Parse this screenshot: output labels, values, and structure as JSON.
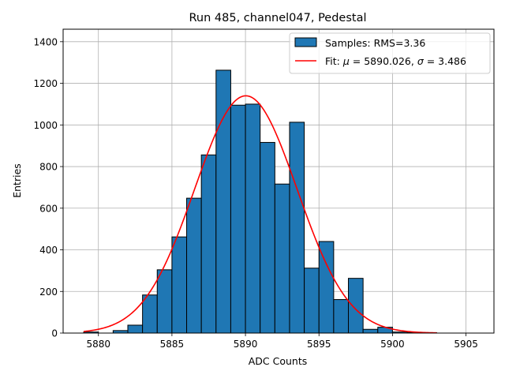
{
  "chart_data": {
    "type": "bar",
    "title": "Run 485, channel047, Pedestal",
    "xlabel": "ADC Counts",
    "ylabel": "Entries",
    "xlim": [
      5877.6,
      5906.9
    ],
    "ylim": [
      0,
      1460
    ],
    "xticks": [
      5880,
      5885,
      5890,
      5895,
      5900,
      5905
    ],
    "yticks": [
      0,
      200,
      400,
      600,
      800,
      1000,
      1200,
      1400
    ],
    "grid": true,
    "legend_position": "top-right",
    "bin_width": 1,
    "series": [
      {
        "name": "Samples: RMS=3.36",
        "kind": "histogram",
        "color": "#1f77b4",
        "edgecolor": "#000000",
        "x": [
          5879,
          5880,
          5881,
          5882,
          5883,
          5884,
          5885,
          5886,
          5887,
          5888,
          5889,
          5890,
          5891,
          5892,
          5893,
          5894,
          5895,
          5896,
          5897,
          5898,
          5899,
          5900,
          5901,
          5902
        ],
        "values": [
          5,
          0,
          12,
          38,
          183,
          304,
          462,
          648,
          856,
          1263,
          1095,
          1100,
          916,
          716,
          1013,
          312,
          440,
          161,
          263,
          18,
          28,
          5,
          3,
          2
        ]
      },
      {
        "name_prefix": "Fit: ",
        "name_mu": "μ",
        "name_mid": " = 5890.026, ",
        "name_sigma": "σ",
        "name_suffix": " = 3.486",
        "kind": "gaussian-fit",
        "color": "#ff0000",
        "mu": 5890.026,
        "sigma": 3.486,
        "amplitude": 1140,
        "x_range": [
          5879,
          5903
        ]
      }
    ]
  }
}
